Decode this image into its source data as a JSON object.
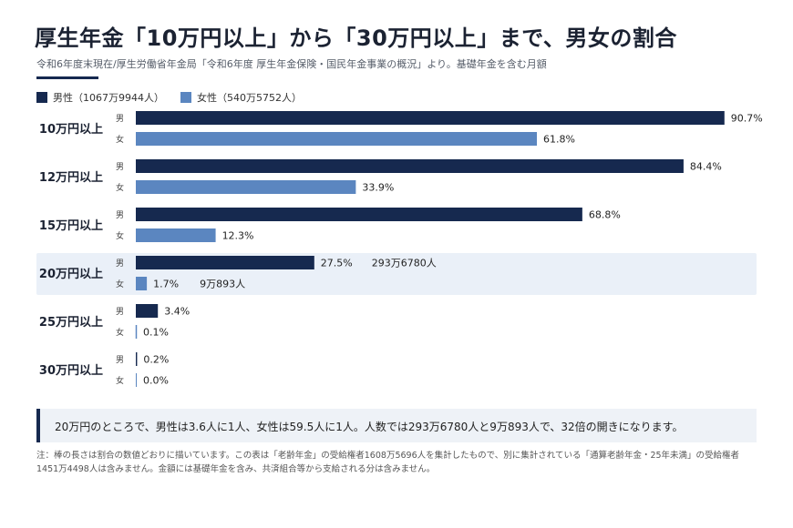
{
  "title": "厚生年金「10万円以上」から「30万円以上」まで、男女の割合",
  "subtitle": "令和6年度末現在/厚生労働省年金局「令和6年度 厚生年金保険・国民年金事業の概況」より。基礎年金を含む月額",
  "legend": {
    "male": "男性（1067万9944人）",
    "female": "女性（540万5752人）"
  },
  "colors": {
    "male": "#16294f",
    "female": "#5b86c0",
    "highlight": "#eaf0f8",
    "accent": "#16294f"
  },
  "chart_data": {
    "type": "bar",
    "orientation": "horizontal",
    "categories": [
      "10万円以上",
      "12万円以上",
      "15万円以上",
      "20万円以上",
      "25万円以上",
      "30万円以上"
    ],
    "series": [
      {
        "name": "男",
        "legend": "男性（1067万9944人）",
        "values": [
          90.7,
          84.4,
          68.8,
          27.5,
          3.4,
          0.2
        ],
        "labels": [
          "90.7%",
          "84.4%",
          "68.8%",
          "27.5%",
          "3.4%",
          "0.2%"
        ]
      },
      {
        "name": "女",
        "legend": "女性（540万5752人）",
        "values": [
          61.8,
          33.9,
          12.3,
          1.7,
          0.1,
          0.0
        ],
        "labels": [
          "61.8%",
          "33.9%",
          "12.3%",
          "1.7%",
          "0.1%",
          "0.0%"
        ]
      }
    ],
    "highlight_category": "20万円以上",
    "highlight_counts": {
      "男": "293万6780人",
      "女": "9万893人"
    },
    "xlim": [
      0,
      100
    ],
    "grid": false
  },
  "note": "20万円のところで、男性は3.6人に1人、女性は59.5人に1人。人数では293万6780人と9万893人で、32倍の開きになります。",
  "footnote": "注：棒の長さは割合の数値どおりに描いています。この表は「老齢年金」の受給権者1608万5696人を集計したもので、別に集計されている「通算老齢年金・25年未満」の受給権者1451万4498人は含みません。金額には基礎年金を含み、共済組合等から支給される分は含みません。"
}
